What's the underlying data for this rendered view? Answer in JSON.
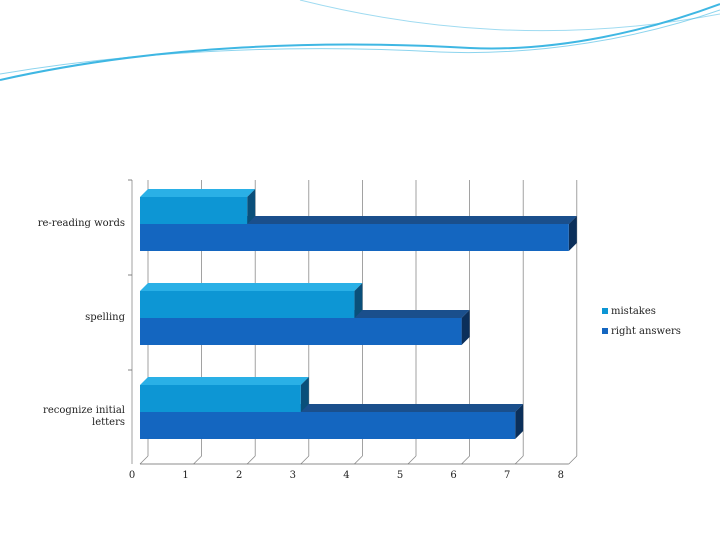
{
  "colors": {
    "mistakes": "#0d96d4",
    "mistakes_top": "#2ab0e6",
    "mistakes_side": "#0a4f7a",
    "right_answers": "#1466c0",
    "right_answers_top": "#1a4f8c",
    "right_answers_side": "#0b2f5a",
    "wave": "#3fb7e3"
  },
  "chart_data": {
    "type": "bar",
    "orientation": "horizontal",
    "three_d": true,
    "categories": [
      "re-reading words",
      "spelling",
      "recognize initial letters"
    ],
    "series": [
      {
        "name": "mistakes",
        "values": [
          2,
          4,
          3
        ]
      },
      {
        "name": "right answers",
        "values": [
          8,
          6,
          7
        ]
      }
    ],
    "xlim": [
      0,
      8
    ],
    "xticks": [
      "0",
      "1",
      "2",
      "3",
      "4",
      "5",
      "6",
      "7",
      "8"
    ],
    "grid": true,
    "legend": "right"
  }
}
